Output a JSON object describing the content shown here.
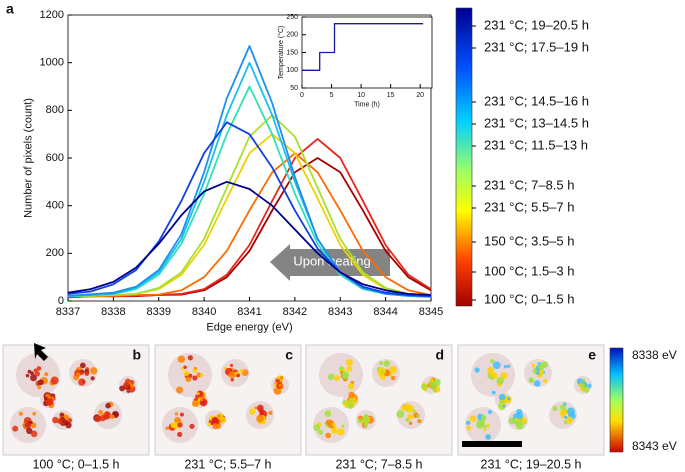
{
  "chart_data": [
    {
      "type": "line",
      "panel_label": "a",
      "xlabel": "Edge energy (eV)",
      "ylabel": "Number of pixels (count)",
      "annotation": "Upon heating",
      "x": [
        8337,
        8337.5,
        8338,
        8338.5,
        8339,
        8339.5,
        8340,
        8340.5,
        8341,
        8341.5,
        8342,
        8342.5,
        8343,
        8343.5,
        8344,
        8344.5,
        8345
      ],
      "xlim": [
        8337,
        8345
      ],
      "xticks": [
        8337,
        8338,
        8339,
        8340,
        8341,
        8342,
        8343,
        8344,
        8345
      ],
      "ylim": [
        0,
        1200
      ],
      "yticks": [
        0,
        200,
        400,
        600,
        800,
        1000,
        1200
      ],
      "series": [
        {
          "name": "100 °C; 0–1.5 h",
          "color": "#a50000",
          "values": [
            15,
            20,
            20,
            20,
            25,
            27,
            45,
            100,
            210,
            380,
            540,
            600,
            540,
            380,
            210,
            100,
            45
          ]
        },
        {
          "name": "100 °C; 1.5–3 h",
          "color": "#e8261a",
          "values": [
            15,
            20,
            20,
            22,
            25,
            30,
            50,
            110,
            235,
            420,
            600,
            680,
            600,
            420,
            235,
            110,
            50
          ]
        },
        {
          "name": "150 °C; 3.5–5 h",
          "color": "#ff6a00",
          "values": [
            20,
            20,
            22,
            25,
            27,
            45,
            100,
            210,
            380,
            540,
            620,
            540,
            380,
            210,
            100,
            45,
            25
          ]
        },
        {
          "name": "231 °C; 5.5–7 h",
          "color": "#f0d000",
          "values": [
            20,
            22,
            25,
            30,
            50,
            110,
            235,
            430,
            620,
            700,
            620,
            430,
            235,
            110,
            50,
            30,
            22
          ]
        },
        {
          "name": "231 °C; 7–8.5 h",
          "color": "#a8e030",
          "values": [
            20,
            22,
            25,
            30,
            55,
            120,
            260,
            475,
            690,
            780,
            690,
            475,
            260,
            120,
            55,
            30,
            22
          ]
        },
        {
          "name": "231 °C; 11.5–13 h",
          "color": "#30e0b8",
          "values": [
            20,
            25,
            30,
            50,
            110,
            240,
            450,
            700,
            900,
            700,
            450,
            240,
            110,
            50,
            30,
            22,
            18
          ]
        },
        {
          "name": "231 °C; 13–14.5 h",
          "color": "#18c0f0",
          "values": [
            20,
            25,
            30,
            55,
            120,
            260,
            500,
            780,
            1000,
            780,
            500,
            260,
            120,
            55,
            30,
            22,
            18
          ]
        },
        {
          "name": "231 °C; 14.5–16 h",
          "color": "#1e8ef0",
          "values": [
            22,
            28,
            35,
            60,
            130,
            280,
            540,
            850,
            1070,
            830,
            520,
            260,
            120,
            55,
            30,
            22,
            18
          ]
        },
        {
          "name": "231 °C; 17.5–19 h",
          "color": "#1040e0",
          "values": [
            30,
            40,
            70,
            130,
            250,
            420,
            620,
            750,
            700,
            560,
            380,
            220,
            120,
            60,
            35,
            25,
            20
          ]
        },
        {
          "name": "231 °C; 19–20.5 h",
          "color": "#000090",
          "values": [
            35,
            50,
            80,
            140,
            240,
            360,
            460,
            500,
            470,
            400,
            300,
            200,
            120,
            70,
            45,
            30,
            25
          ]
        }
      ]
    },
    {
      "type": "line",
      "xlabel": "Time (h)",
      "ylabel": "Temperature (°C)",
      "x": [
        0,
        3,
        3,
        5.5,
        5.5,
        20.5
      ],
      "xlim": [
        0,
        22
      ],
      "xticks": [
        0,
        5,
        10,
        15,
        20
      ],
      "ylim": [
        50,
        250
      ],
      "yticks": [
        50,
        100,
        150,
        200,
        250
      ],
      "series": [
        {
          "name": null,
          "color": "#1a1aa0",
          "values": [
            100,
            100,
            150,
            150,
            231,
            231
          ]
        }
      ]
    }
  ],
  "panels": [
    {
      "label": "b",
      "caption": "100 °C; 0–1.5 h"
    },
    {
      "label": "c",
      "caption": "231 °C; 5.5–7 h"
    },
    {
      "label": "d",
      "caption": "231 °C; 7–8.5 h"
    },
    {
      "label": "e",
      "caption": "231 °C; 19–20.5 h"
    }
  ],
  "energy_colorbar": {
    "top": "8338 eV",
    "bottom": "8343 eV"
  }
}
